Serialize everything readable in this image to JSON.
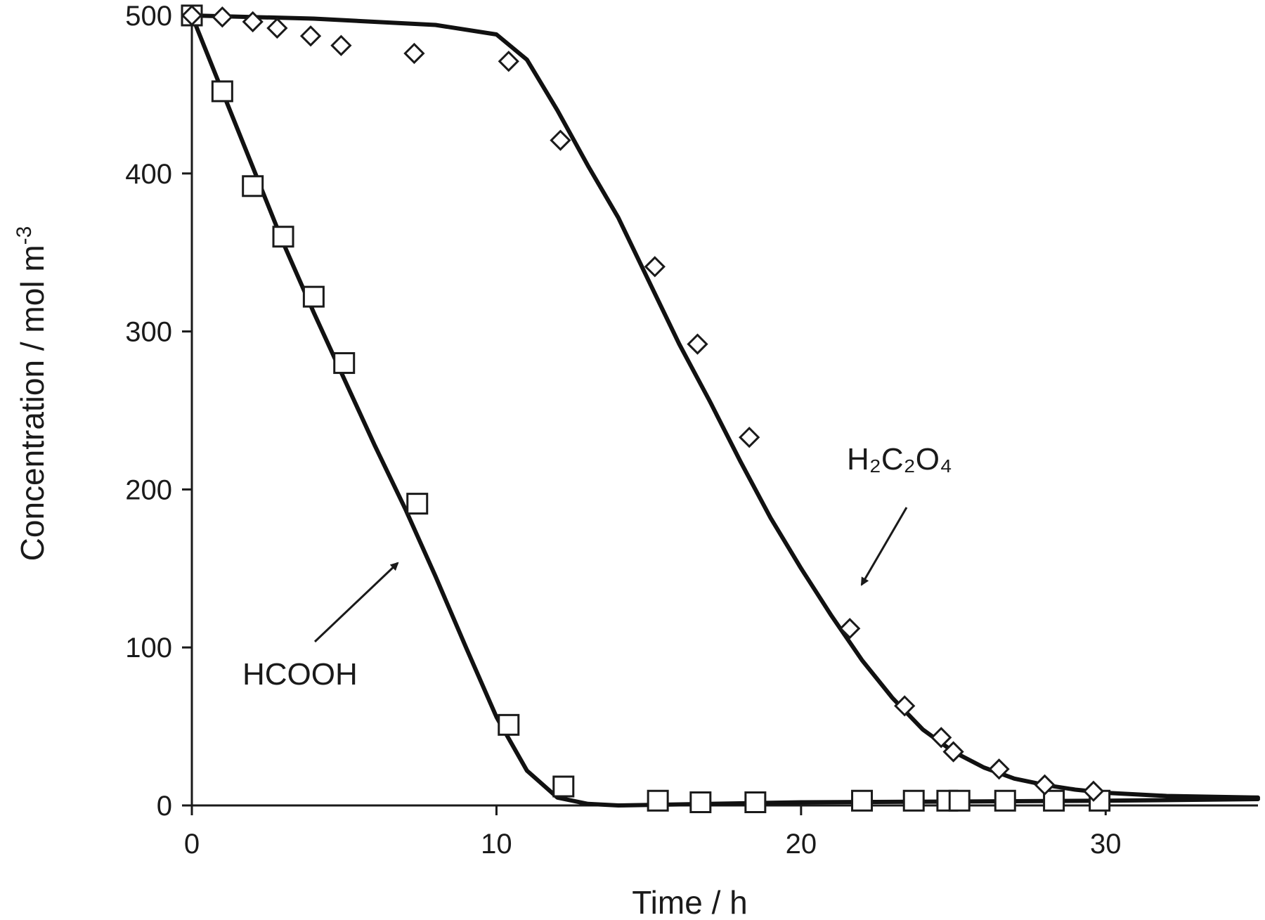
{
  "chart_data": {
    "type": "scatter",
    "title": "",
    "xlabel": "Time / h",
    "ylabel": "Concentration / mol m",
    "ylabel_sup": "-3",
    "xlim": [
      0,
      35
    ],
    "ylim": [
      0,
      500
    ],
    "xticks": [
      0,
      10,
      20,
      30
    ],
    "yticks": [
      0,
      100,
      200,
      300,
      400,
      500
    ],
    "grid": false,
    "series": [
      {
        "name": "HCOOH",
        "marker": "square",
        "points": [
          [
            0,
            500
          ],
          [
            1,
            452
          ],
          [
            2,
            392
          ],
          [
            3,
            360
          ],
          [
            4,
            322
          ],
          [
            5,
            280
          ],
          [
            7.4,
            191
          ],
          [
            10.4,
            51
          ],
          [
            12.2,
            12
          ],
          [
            15.3,
            3
          ],
          [
            16.7,
            2
          ],
          [
            18.5,
            2
          ],
          [
            22,
            3
          ],
          [
            23.7,
            3
          ],
          [
            24.8,
            3
          ],
          [
            25.2,
            3
          ],
          [
            26.7,
            3
          ],
          [
            28.3,
            3
          ],
          [
            29.8,
            3
          ]
        ],
        "fit": [
          [
            0,
            500
          ],
          [
            1,
            452
          ],
          [
            2,
            404
          ],
          [
            3,
            356
          ],
          [
            4,
            312
          ],
          [
            5,
            270
          ],
          [
            6,
            228
          ],
          [
            7,
            188
          ],
          [
            8,
            145
          ],
          [
            9,
            100
          ],
          [
            10,
            56
          ],
          [
            11,
            22
          ],
          [
            12,
            5
          ],
          [
            13,
            1
          ],
          [
            14,
            0
          ],
          [
            20,
            2
          ],
          [
            30,
            3
          ],
          [
            35,
            4
          ]
        ]
      },
      {
        "name": "H₂C₂O₄",
        "marker": "diamond",
        "points": [
          [
            0,
            500
          ],
          [
            1,
            499
          ],
          [
            2,
            496
          ],
          [
            2.8,
            492
          ],
          [
            3.9,
            487
          ],
          [
            4.9,
            481
          ],
          [
            7.3,
            476
          ],
          [
            10.4,
            471
          ],
          [
            12.1,
            421
          ],
          [
            15.2,
            341
          ],
          [
            16.6,
            292
          ],
          [
            18.3,
            233
          ],
          [
            21.6,
            112
          ],
          [
            23.4,
            63
          ],
          [
            24.6,
            43
          ],
          [
            25.0,
            34
          ],
          [
            26.5,
            23
          ],
          [
            28.0,
            13
          ],
          [
            29.6,
            9
          ]
        ],
        "fit": [
          [
            0,
            500
          ],
          [
            4,
            498
          ],
          [
            8,
            494
          ],
          [
            10,
            488
          ],
          [
            11,
            472
          ],
          [
            12,
            440
          ],
          [
            13,
            405
          ],
          [
            14,
            372
          ],
          [
            15,
            332
          ],
          [
            16,
            292
          ],
          [
            17,
            256
          ],
          [
            18,
            218
          ],
          [
            19,
            182
          ],
          [
            20,
            150
          ],
          [
            21,
            120
          ],
          [
            22,
            92
          ],
          [
            23,
            68
          ],
          [
            24,
            48
          ],
          [
            25,
            34
          ],
          [
            26,
            24
          ],
          [
            27,
            17
          ],
          [
            28,
            13
          ],
          [
            29,
            10
          ],
          [
            30,
            8
          ],
          [
            32,
            6
          ],
          [
            35,
            5
          ]
        ]
      }
    ],
    "annotations": [
      {
        "text": "HCOOH",
        "series": "HCOOH"
      },
      {
        "text": "H₂C₂O₄",
        "series": "H₂C₂O₄"
      }
    ]
  }
}
